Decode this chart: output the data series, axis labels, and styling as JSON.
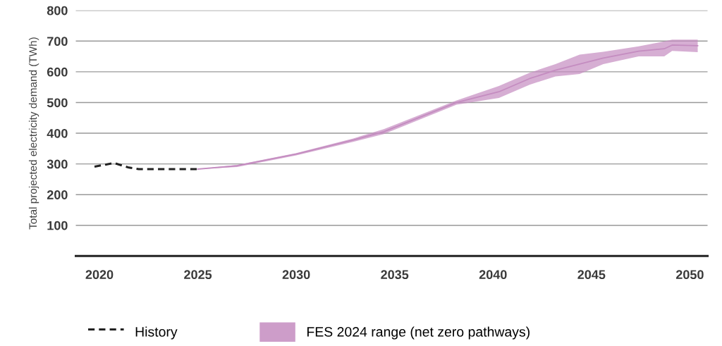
{
  "chart_data": {
    "type": "line",
    "ylabel": "Total projected electricity demand (TWh)",
    "xlim": [
      2018.8,
      2050.9
    ],
    "xticks": [
      2020,
      2025,
      2030,
      2035,
      2040,
      2045,
      2050
    ],
    "ylim": [
      0,
      800
    ],
    "yticks": [
      100,
      200,
      300,
      400,
      500,
      600,
      700,
      800
    ],
    "grid": "y",
    "legend": "bottom",
    "series": [
      {
        "name": "History",
        "color": "#222222",
        "line_style": "dashed",
        "x": [
          2019.75,
          2020.75,
          2021.5,
          2022,
          2025
        ],
        "values": [
          291,
          303,
          288,
          283,
          283
        ]
      },
      {
        "name": "FES 2024 range (net zero pathways)",
        "color": "#c48cc0",
        "x": [
          2025,
          2027,
          2030,
          2032.9,
          2034.45,
          2038.15,
          2040.3,
          2041.86,
          2043.17,
          2044.4,
          2045.6,
          2047.4,
          2048.7,
          2049.1,
          2050.4
        ],
        "values": [
          283,
          294,
          332,
          378,
          405,
          500,
          535,
          578,
          605,
          625,
          645,
          667,
          675,
          687,
          685
        ],
        "upper": [
          283,
          297,
          335,
          383,
          413,
          507,
          554,
          597,
          625,
          656,
          665,
          683,
          699,
          705,
          705
        ],
        "lower": [
          283,
          290,
          328,
          372,
          397,
          493,
          515,
          558,
          585,
          593,
          625,
          650,
          650,
          668,
          664
        ]
      }
    ]
  }
}
